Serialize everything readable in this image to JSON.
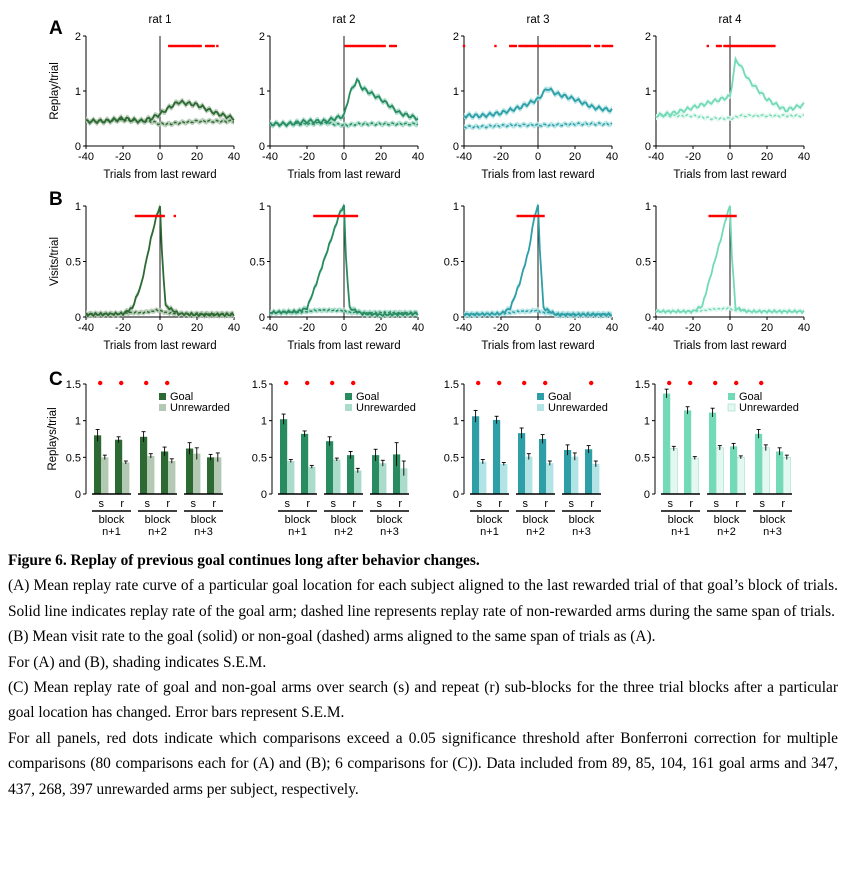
{
  "figure": {
    "panel_letters": [
      "A",
      "B",
      "C"
    ],
    "rat_titles": [
      "rat 1",
      "rat 2",
      "rat 3",
      "rat 4"
    ],
    "xlabel": "Trials from last reward",
    "ylabel_a": "Replay/trial",
    "ylabel_b": "Visits/trial",
    "ylabel_c": "Replays/trial",
    "legend_goal": "Goal",
    "legend_unrewarded": "Unrewarded",
    "block_word": "block",
    "block_numbers": [
      "n+1",
      "n+2",
      "n+3"
    ],
    "subblock_labels": [
      "s",
      "r"
    ],
    "colors": {
      "rat_colors": [
        "#2d6a33",
        "#288c60",
        "#2e9fa6",
        "#73dab8"
      ],
      "rat_light": [
        "#b4c9b3",
        "#aadbcb",
        "#b2e3e5",
        "#e3f8f0"
      ],
      "significance": "#ff0000"
    }
  },
  "chart_data": [
    {
      "panel": "A",
      "type": "line",
      "ylabel": "Replay/trial",
      "xlabel": "Trials from last reward",
      "xlim": [
        -40,
        40
      ],
      "xticks": [
        -40,
        -20,
        0,
        20,
        40
      ],
      "ylim": [
        0,
        2
      ],
      "yticks": [
        0,
        1,
        2
      ],
      "series": [
        {
          "rat": "rat 1",
          "x": [
            -40,
            -30,
            -20,
            -10,
            -5,
            0,
            5,
            10,
            20,
            30,
            40
          ],
          "goal": [
            0.45,
            0.45,
            0.5,
            0.45,
            0.5,
            0.58,
            0.7,
            0.8,
            0.75,
            0.6,
            0.5
          ],
          "unrewarded": [
            0.45,
            0.45,
            0.47,
            0.45,
            0.45,
            0.4,
            0.4,
            0.42,
            0.45,
            0.45,
            0.45
          ],
          "significant_x": [
            [
              5,
              22
            ],
            [
              25,
              29
            ],
            [
              31,
              31
            ]
          ]
        },
        {
          "rat": "rat 2",
          "x": [
            -40,
            -30,
            -20,
            -10,
            -5,
            0,
            3,
            7,
            10,
            20,
            30,
            40
          ],
          "goal": [
            0.4,
            0.4,
            0.45,
            0.45,
            0.5,
            0.55,
            0.95,
            1.2,
            1.05,
            0.85,
            0.6,
            0.5
          ],
          "unrewarded": [
            0.4,
            0.4,
            0.4,
            0.42,
            0.4,
            0.38,
            0.38,
            0.4,
            0.4,
            0.4,
            0.4,
            0.4
          ],
          "significant_x": [
            [
              1,
              22
            ],
            [
              25,
              28
            ]
          ]
        },
        {
          "rat": "rat 3",
          "x": [
            -40,
            -30,
            -20,
            -10,
            0,
            5,
            10,
            20,
            30,
            40
          ],
          "goal": [
            0.55,
            0.55,
            0.6,
            0.7,
            0.85,
            1.05,
            0.95,
            0.85,
            0.7,
            0.65
          ],
          "unrewarded": [
            0.35,
            0.35,
            0.37,
            0.38,
            0.38,
            0.38,
            0.38,
            0.4,
            0.4,
            0.4
          ],
          "significant_x": [
            [
              -40,
              -40
            ],
            [
              -23,
              -23
            ],
            [
              -15,
              -12
            ],
            [
              -10,
              28
            ],
            [
              31,
              33
            ],
            [
              35,
              40
            ]
          ]
        },
        {
          "rat": "rat 4",
          "x": [
            -40,
            -30,
            -20,
            -10,
            -5,
            0,
            3,
            5,
            10,
            20,
            30,
            40
          ],
          "goal": [
            0.55,
            0.6,
            0.7,
            0.8,
            0.85,
            0.9,
            1.55,
            1.5,
            1.2,
            0.85,
            0.65,
            0.75
          ],
          "unrewarded": [
            0.55,
            0.55,
            0.55,
            0.5,
            0.5,
            0.5,
            0.52,
            0.55,
            0.55,
            0.55,
            0.55,
            0.55
          ],
          "significant_x": [
            [
              -12,
              -12
            ],
            [
              -7,
              -5
            ],
            [
              -3,
              24
            ]
          ]
        }
      ]
    },
    {
      "panel": "B",
      "type": "line",
      "ylabel": "Visits/trial",
      "xlabel": "Trials from last reward",
      "xlim": [
        -40,
        40
      ],
      "xticks": [
        -40,
        -20,
        0,
        20,
        40
      ],
      "ylim": [
        0,
        1
      ],
      "yticks": [
        0,
        0.5,
        1
      ],
      "series": [
        {
          "rat": "rat 1",
          "x": [
            -40,
            -20,
            -15,
            -10,
            -5,
            -2,
            0,
            1,
            3,
            10,
            20,
            40
          ],
          "goal": [
            0.02,
            0.03,
            0.08,
            0.3,
            0.7,
            0.9,
            1.0,
            0.6,
            0.1,
            0.03,
            0.02,
            0.02
          ],
          "unrewarded": [
            0.03,
            0.03,
            0.04,
            0.04,
            0.05,
            0.06,
            0.06,
            0.05,
            0.04,
            0.03,
            0.03,
            0.03
          ],
          "significant_x": [
            [
              -13,
              2
            ],
            [
              8,
              8
            ]
          ]
        },
        {
          "rat": "rat 2",
          "x": [
            -40,
            -25,
            -20,
            -15,
            -10,
            -5,
            -2,
            0,
            1,
            3,
            10,
            20,
            40
          ],
          "goal": [
            0.04,
            0.05,
            0.08,
            0.3,
            0.55,
            0.8,
            0.95,
            1.0,
            0.55,
            0.08,
            0.03,
            0.02,
            0.03
          ],
          "unrewarded": [
            0.04,
            0.04,
            0.05,
            0.06,
            0.06,
            0.06,
            0.06,
            0.06,
            0.05,
            0.04,
            0.04,
            0.04,
            0.04
          ],
          "significant_x": [
            [
              -16,
              7
            ]
          ]
        },
        {
          "rat": "rat 3",
          "x": [
            -40,
            -20,
            -15,
            -10,
            -5,
            -2,
            0,
            1,
            3,
            10,
            20,
            40
          ],
          "goal": [
            0.02,
            0.03,
            0.08,
            0.3,
            0.6,
            0.9,
            1.0,
            0.6,
            0.08,
            0.02,
            0.02,
            0.02
          ],
          "unrewarded": [
            0.03,
            0.03,
            0.04,
            0.05,
            0.05,
            0.06,
            0.06,
            0.05,
            0.04,
            0.03,
            0.03,
            0.03
          ],
          "significant_x": [
            [
              -11,
              3
            ]
          ]
        },
        {
          "rat": "rat 4",
          "x": [
            -40,
            -20,
            -15,
            -10,
            -5,
            -2,
            0,
            1,
            3,
            10,
            20,
            40
          ],
          "goal": [
            0.05,
            0.05,
            0.1,
            0.4,
            0.7,
            0.9,
            1.0,
            0.55,
            0.08,
            0.05,
            0.05,
            0.05
          ],
          "unrewarded": [
            0.05,
            0.05,
            0.06,
            0.07,
            0.07,
            0.08,
            0.08,
            0.07,
            0.06,
            0.05,
            0.05,
            0.05
          ],
          "significant_x": [
            [
              -11,
              3
            ]
          ]
        }
      ]
    },
    {
      "panel": "C",
      "type": "bar",
      "ylabel": "Replays/trial",
      "ylim": [
        0,
        1.5
      ],
      "yticks": [
        0,
        0.5,
        1,
        1.5
      ],
      "categories": [
        "block n+1 s",
        "block n+1 r",
        "block n+2 s",
        "block n+2 r",
        "block n+3 s",
        "block n+3 r"
      ],
      "series_names": [
        "Goal",
        "Unrewarded"
      ],
      "rats": [
        {
          "rat": "rat 1",
          "goal": [
            0.8,
            0.74,
            0.78,
            0.58,
            0.62,
            0.5
          ],
          "goal_sem": [
            0.08,
            0.04,
            0.07,
            0.06,
            0.08,
            0.04
          ],
          "unrewarded": [
            0.5,
            0.43,
            0.52,
            0.45,
            0.55,
            0.5
          ],
          "unrewarded_sem": [
            0.03,
            0.02,
            0.03,
            0.03,
            0.08,
            0.06
          ],
          "significant": [
            true,
            true,
            true,
            true,
            false,
            false
          ]
        },
        {
          "rat": "rat 2",
          "goal": [
            1.02,
            0.82,
            0.72,
            0.53,
            0.53,
            0.54
          ],
          "goal_sem": [
            0.07,
            0.04,
            0.06,
            0.05,
            0.08,
            0.16
          ],
          "unrewarded": [
            0.45,
            0.37,
            0.47,
            0.32,
            0.42,
            0.35
          ],
          "unrewarded_sem": [
            0.02,
            0.02,
            0.02,
            0.03,
            0.04,
            0.1
          ],
          "significant": [
            true,
            true,
            true,
            true,
            false,
            false
          ]
        },
        {
          "rat": "rat 3",
          "goal": [
            1.06,
            1.01,
            0.83,
            0.75,
            0.6,
            0.61
          ],
          "goal_sem": [
            0.08,
            0.05,
            0.07,
            0.06,
            0.07,
            0.05
          ],
          "unrewarded": [
            0.44,
            0.41,
            0.51,
            0.42,
            0.51,
            0.41
          ],
          "unrewarded_sem": [
            0.03,
            0.02,
            0.04,
            0.03,
            0.05,
            0.04
          ],
          "significant": [
            true,
            true,
            true,
            true,
            false,
            true
          ]
        },
        {
          "rat": "rat 4",
          "goal": [
            1.37,
            1.14,
            1.11,
            0.65,
            0.82,
            0.58
          ],
          "goal_sem": [
            0.06,
            0.05,
            0.06,
            0.04,
            0.06,
            0.05
          ],
          "unrewarded": [
            0.62,
            0.49,
            0.63,
            0.5,
            0.63,
            0.5
          ],
          "unrewarded_sem": [
            0.03,
            0.02,
            0.03,
            0.02,
            0.04,
            0.03
          ],
          "significant": [
            true,
            true,
            true,
            true,
            true,
            false
          ]
        }
      ]
    }
  ],
  "caption": {
    "title": "Figure 6. Replay of previous goal continues long after behavior changes.",
    "paragraphs": [
      "(A) Mean replay rate curve of a particular goal location for each subject aligned to the last rewarded trial of that goal’s block of trials. Solid line indicates replay rate of the goal arm; dashed line represents replay rate of non-rewarded arms during the same span of trials.",
      "(B) Mean visit rate to the goal (solid) or non-goal (dashed) arms aligned to the same span of trials as (A).",
      "For (A) and (B), shading indicates S.E.M.",
      "(C) Mean replay rate of goal and non-goal arms over search (s) and repeat (r) sub-blocks for the three trial blocks after a particular goal location has changed. Error bars represent S.E.M.",
      "For all panels, red dots indicate which comparisons exceed a 0.05 significance threshold after Bonferroni correction for multiple comparisons (80 comparisons each for (A) and (B); 6 comparisons for (C)).   Data included from 89, 85, 104, 161 goal arms and 347, 437, 268, 397 unrewarded arms per subject, respectively."
    ]
  }
}
